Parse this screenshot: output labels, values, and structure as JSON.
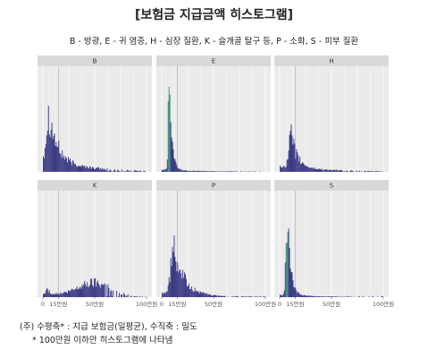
{
  "header": {
    "title": "[보험금 지급금액 히스토그램]",
    "subtitle": "B - 방광, E - 귀 염증, H - 심장 질환, K - 슬개골 탈구 등, P - 소화, S - 피부 질환"
  },
  "notes": {
    "line1": "(주) 수평축* : 지급 보험금(일평균), 수직축 : 밀도",
    "line2": "* 100만원 이하만 히스토그램에 나타냄"
  },
  "colors": {
    "panel_bg": "#ebebeb",
    "strip_bg": "#d9d9d9",
    "bar_dark": "#2a2a7a",
    "bar_teal": "#2e7d6e",
    "ref_line": "#bbbbbb"
  },
  "chart_data": {
    "type": "bar",
    "layout": "facet-grid 2x3",
    "xlim": [
      0,
      100
    ],
    "x_ticks": [
      {
        "value": 0,
        "label": "0"
      },
      {
        "value": 15,
        "label": "15만원"
      },
      {
        "value": 50,
        "label": "50만원"
      },
      {
        "value": 100,
        "label": "100만원"
      }
    ],
    "reference_line_x": 15,
    "panels": [
      {
        "label": "B",
        "peak_x": 6,
        "peak_h": 0.45,
        "spread": 8,
        "tail": 0.12,
        "hump": null,
        "teal": false
      },
      {
        "label": "E",
        "peak_x": 7,
        "peak_h": 0.92,
        "spread": 2.5,
        "tail": 0.02,
        "hump": null,
        "teal": true
      },
      {
        "label": "H",
        "peak_x": 11,
        "peak_h": 0.3,
        "spread": 6,
        "tail": 0.06,
        "hump": null,
        "teal": false
      },
      {
        "label": "K",
        "peak_x": 4,
        "peak_h": 0.05,
        "spread": 3,
        "tail": 0.03,
        "hump": {
          "center": 50,
          "width": 22,
          "h": 0.13
        },
        "teal": false
      },
      {
        "label": "P",
        "peak_x": 12,
        "peak_h": 0.46,
        "spread": 9,
        "tail": 0.04,
        "hump": null,
        "teal": false
      },
      {
        "label": "S",
        "peak_x": 7,
        "peak_h": 0.78,
        "spread": 3.5,
        "tail": 0.02,
        "hump": null,
        "teal": true
      }
    ]
  }
}
